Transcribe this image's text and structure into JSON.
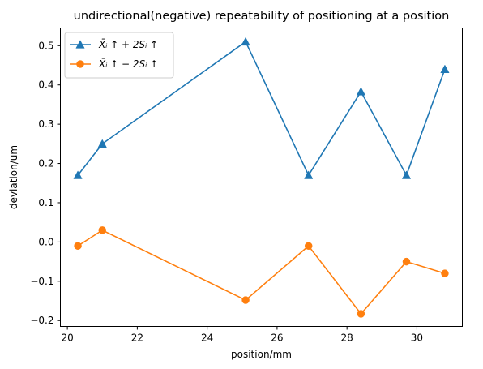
{
  "chart_data": {
    "type": "line",
    "title": "undirectional(negative) repeatability of positioning at a position",
    "xlabel": "position/mm",
    "ylabel": "deviation/um",
    "xlim": [
      19.8,
      31.3
    ],
    "ylim": [
      -0.215,
      0.545
    ],
    "xticks": [
      20,
      22,
      24,
      26,
      28,
      30
    ],
    "xtick_labels": [
      "20",
      "22",
      "24",
      "26",
      "28",
      "30"
    ],
    "yticks": [
      -0.2,
      -0.1,
      0.0,
      0.1,
      0.2,
      0.3,
      0.4,
      0.5
    ],
    "ytick_labels": [
      "−0.2",
      "−0.1",
      "0.0",
      "0.1",
      "0.2",
      "0.3",
      "0.4",
      "0.5"
    ],
    "x": [
      20.3,
      21.0,
      25.1,
      26.9,
      28.4,
      29.7,
      30.8
    ],
    "series": [
      {
        "name": "X̄ᵢ ↑ + 2Sᵢ ↑",
        "values": [
          0.17,
          0.25,
          0.51,
          0.17,
          0.383,
          0.17,
          0.44
        ],
        "color": "#1f77b4",
        "marker": "triangle"
      },
      {
        "name": "X̄ᵢ ↑ − 2Sᵢ ↑",
        "values": [
          -0.01,
          0.03,
          -0.148,
          -0.01,
          -0.183,
          -0.05,
          -0.08
        ],
        "color": "#ff7f0e",
        "marker": "circle"
      }
    ],
    "legend_position": "upper-left",
    "grid": false
  }
}
